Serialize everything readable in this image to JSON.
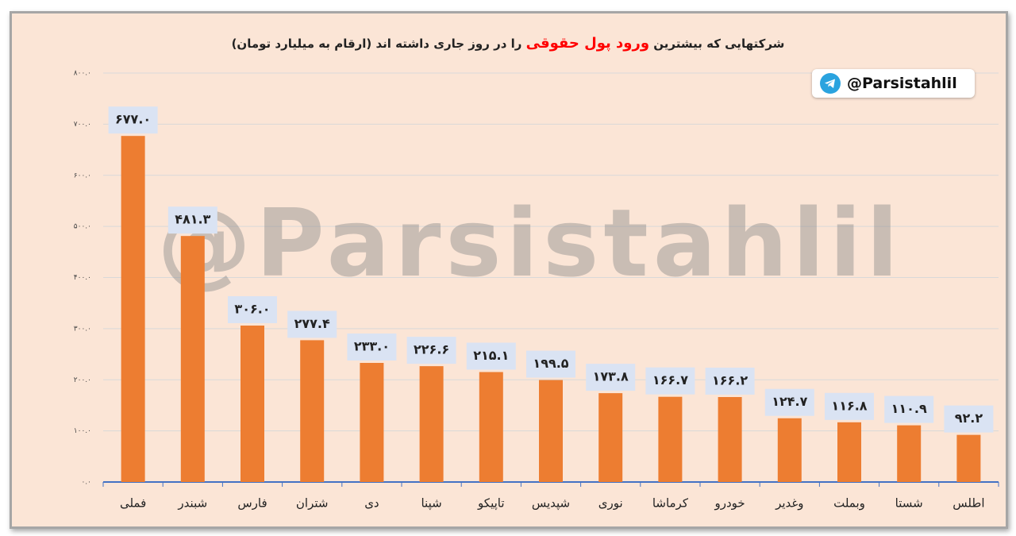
{
  "chart_data": {
    "type": "bar",
    "title_parts": [
      "شرکتهایی که بیشترین",
      "ورود پول حقوقی",
      "را در روز جاری داشته اند (ارقام به میلیارد تومان)"
    ],
    "title_highlight_color": "#ff0000",
    "badge": "@Parsistahlil",
    "watermark": "@Parsistahlil",
    "categories": [
      "فملی",
      "شبندر",
      "فارس",
      "شتران",
      "دی",
      "شپنا",
      "تاپیکو",
      "شپدیس",
      "نوری",
      "کرماشا",
      "خودرو",
      "وغدیر",
      "وبملت",
      "شستا",
      "اطلس"
    ],
    "values": [
      677.0,
      481.3,
      306.0,
      277.4,
      233.0,
      226.6,
      215.1,
      199.5,
      173.8,
      166.7,
      166.2,
      124.7,
      116.8,
      110.9,
      92.2
    ],
    "value_labels": [
      "۶۷۷.۰",
      "۴۸۱.۳",
      "۳۰۶.۰",
      "۲۷۷.۴",
      "۲۳۳.۰",
      "۲۲۶.۶",
      "۲۱۵.۱",
      "۱۹۹.۵",
      "۱۷۳.۸",
      "۱۶۶.۷",
      "۱۶۶.۲",
      "۱۲۴.۷",
      "۱۱۶.۸",
      "۱۱۰.۹",
      "۹۲.۲"
    ],
    "color": "#ed7d31",
    "ylim": [
      0,
      800
    ],
    "yticks": [
      {
        "value": 0,
        "label": "۰.۰"
      },
      {
        "value": 100,
        "label": "۱۰۰.۰"
      },
      {
        "value": 200,
        "label": "۲۰۰.۰"
      },
      {
        "value": 300,
        "label": "۳۰۰.۰"
      },
      {
        "value": 400,
        "label": "۴۰۰.۰"
      },
      {
        "value": 500,
        "label": "۵۰۰.۰"
      },
      {
        "value": 600,
        "label": "۶۰۰.۰"
      },
      {
        "value": 700,
        "label": "۷۰۰.۰"
      },
      {
        "value": 800,
        "label": "۸۰۰.۰"
      }
    ],
    "grid": true
  }
}
